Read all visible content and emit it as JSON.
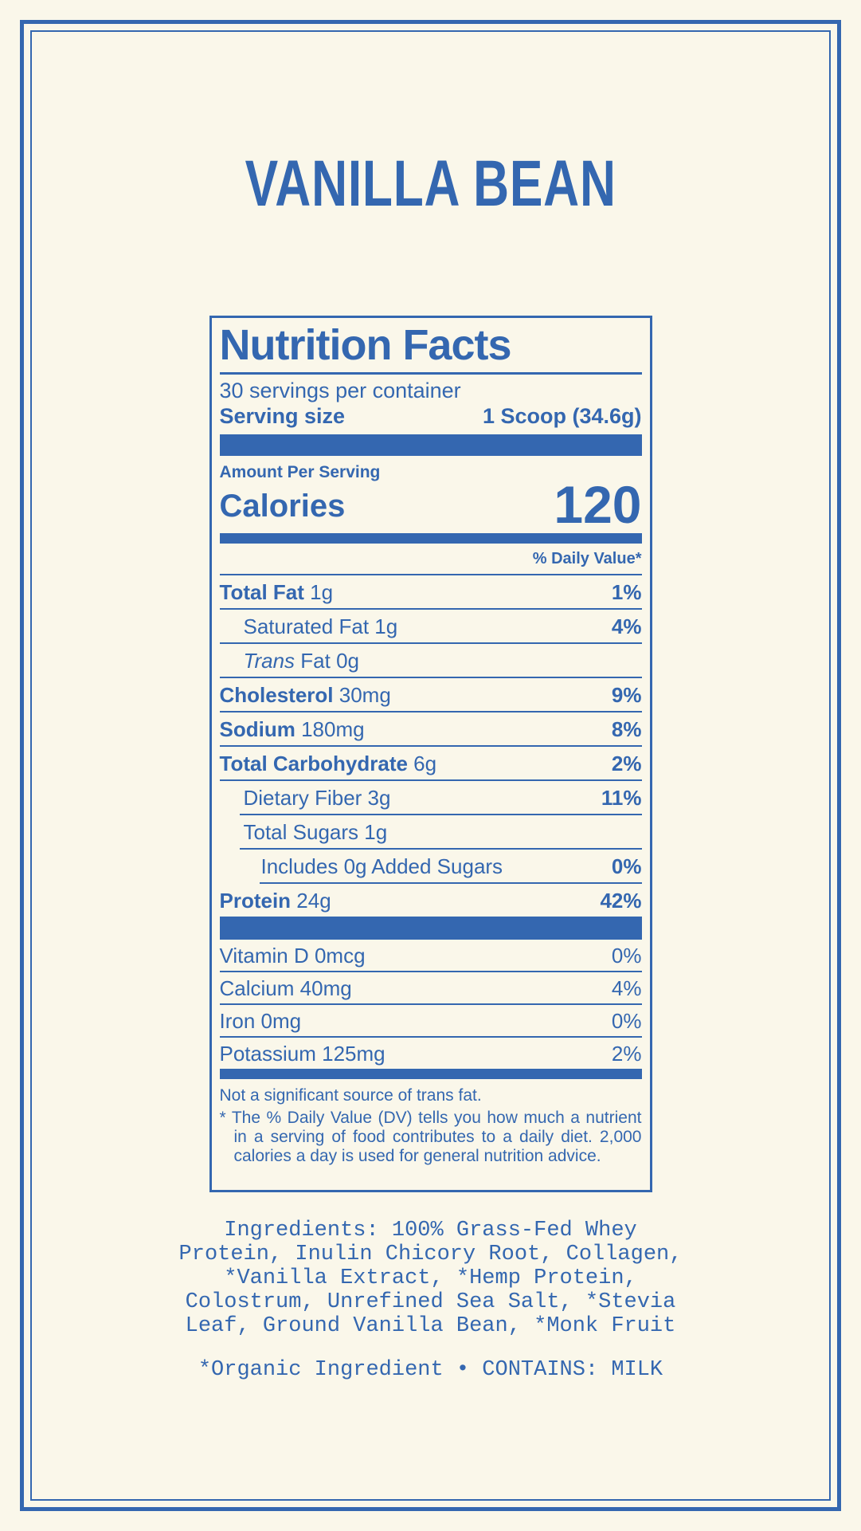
{
  "colors": {
    "accent_blue": "#3467b0",
    "background_cream": "#faf7ea"
  },
  "page": {
    "title": "VANILLA BEAN"
  },
  "nutrition_panel": {
    "heading": "Nutrition Facts",
    "servings_per_container": "30 servings per container",
    "serving_size_label": "Serving size",
    "serving_size_value": "1 Scoop (34.6g)",
    "amount_per_serving": "Amount Per Serving",
    "calories_label": "Calories",
    "calories_value": "120",
    "daily_value_header": "% Daily Value*",
    "rows": [
      {
        "name": "Total Fat",
        "amount": "1g",
        "dv": "1%",
        "bold": true,
        "indent": 0,
        "sep_level": 0
      },
      {
        "name": "Saturated Fat",
        "amount": "1g",
        "dv": "4%",
        "bold": false,
        "indent": 1,
        "sep_level": 0
      },
      {
        "italic_prefix": "Trans",
        "name": "Fat",
        "amount": "0g",
        "dv": "",
        "bold": false,
        "indent": 1,
        "sep_level": 0
      },
      {
        "name": "Cholesterol",
        "amount": "30mg",
        "dv": "9%",
        "bold": true,
        "indent": 0,
        "sep_level": 0
      },
      {
        "name": "Sodium",
        "amount": "180mg",
        "dv": "8%",
        "bold": true,
        "indent": 0,
        "sep_level": 0
      },
      {
        "name": "Total Carbohydrate",
        "amount": "6g",
        "dv": "2%",
        "bold": true,
        "indent": 0,
        "sep_level": 0
      },
      {
        "name": "Dietary Fiber",
        "amount": "3g",
        "dv": "11%",
        "bold": false,
        "indent": 1,
        "sep_level": 0
      },
      {
        "name": "Total Sugars",
        "amount": "1g",
        "dv": "",
        "bold": false,
        "indent": 1,
        "sep_level": 1
      },
      {
        "name": "Includes 0g Added Sugars",
        "amount": "",
        "dv": "0%",
        "bold": false,
        "indent": 2,
        "sep_level": 1
      },
      {
        "name": "Protein",
        "amount": "24g",
        "dv": "42%",
        "bold": true,
        "indent": 0,
        "sep_level": 2
      }
    ],
    "vitamins": [
      {
        "name": "Vitamin D",
        "amount": "0mcg",
        "dv": "0%"
      },
      {
        "name": "Calcium",
        "amount": "40mg",
        "dv": "4%"
      },
      {
        "name": "Iron",
        "amount": "0mg",
        "dv": "0%"
      },
      {
        "name": "Potassium",
        "amount": "125mg",
        "dv": "2%"
      }
    ],
    "footnotes": [
      {
        "marker": "",
        "text": "Not a significant source of trans fat."
      },
      {
        "marker": "*",
        "text": "The % Daily Value (DV) tells you how much a nutrient in a serving of food contributes to a daily diet. 2,000 calories a day is used for general nutrition advice."
      }
    ]
  },
  "ingredients": {
    "text": "Ingredients: 100% Grass-Fed Whey Protein, Inulin Chicory Root, Collagen, *Vanilla Extract, *Hemp Protein, Colostrum, Unrefined Sea Salt, *Stevia Leaf, Ground Vanilla Bean, *Monk Fruit",
    "allergen": "*Organic Ingredient • CONTAINS: MILK"
  }
}
